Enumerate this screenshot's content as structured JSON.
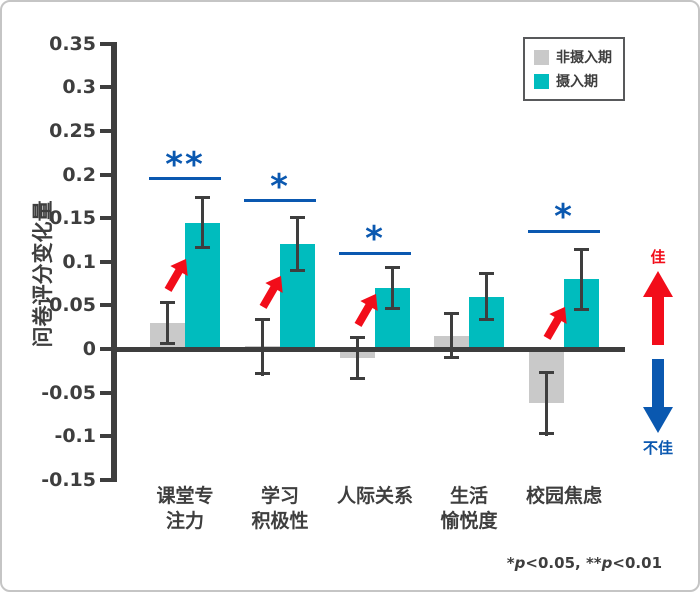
{
  "chart_data": {
    "type": "bar",
    "title": "",
    "ylabel": "问卷评分变化量",
    "ylim": [
      -0.15,
      0.35
    ],
    "ytick_step": 0.05,
    "yticks": [
      "0.35",
      "0.3",
      "0.25",
      "0.2",
      "0.15",
      "0.1",
      "0.05",
      "0",
      "-0.05",
      "-0.1",
      "-0.15"
    ],
    "grid": false,
    "legend_position": "top-right",
    "categories": [
      [
        "课堂专",
        "注力"
      ],
      [
        "学习",
        "积极性"
      ],
      [
        "人际关系"
      ],
      [
        "生活",
        "愉悦度"
      ],
      [
        "校园焦虑"
      ]
    ],
    "series": [
      {
        "name": "非摄入期",
        "color": "#c9c9c9",
        "values": [
          0.03,
          0.003,
          -0.01,
          0.015,
          -0.062
        ],
        "errors": [
          0.025,
          0.033,
          0.025,
          0.027,
          0.037
        ]
      },
      {
        "name": "摄入期",
        "color": "#00bcbe",
        "values": [
          0.145,
          0.12,
          0.07,
          0.06,
          0.08
        ],
        "errors": [
          0.03,
          0.032,
          0.025,
          0.028,
          0.036
        ]
      }
    ],
    "significance": [
      {
        "label": "**",
        "line_y": 0.195,
        "arrow": true
      },
      {
        "label": "*",
        "line_y": 0.17,
        "arrow": true
      },
      {
        "label": "*",
        "line_y": 0.11,
        "arrow": true
      },
      null,
      {
        "label": "*",
        "line_y": 0.135,
        "arrow": true
      }
    ]
  },
  "direction_indicator": {
    "good": "佳",
    "bad": "不佳"
  },
  "footnote": {
    "text": "*p<0.05, **p<0.01"
  },
  "colors": {
    "bar_gray": "#c9c9c9",
    "bar_teal": "#00bcbe",
    "axis_dark": "#3e3e3e",
    "significance_blue": "#0a58b0",
    "arrow_red": "#f20d1a",
    "frame_border": "#c5c5c5"
  }
}
